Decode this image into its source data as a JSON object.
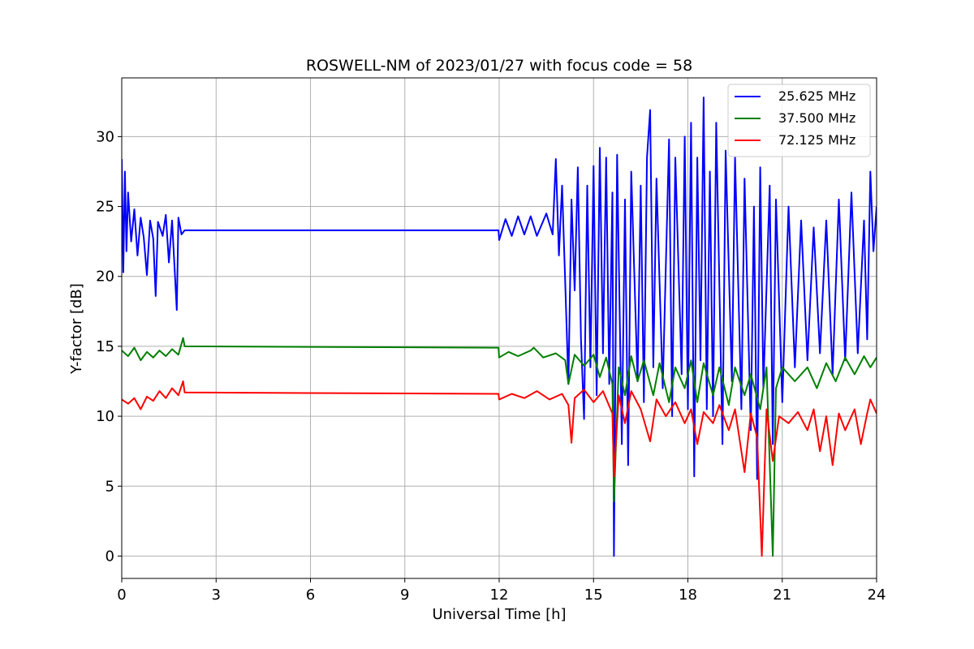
{
  "chart_data": {
    "type": "line",
    "title": "ROSWELL-NM of 2023/01/27 with focus code = 58",
    "xlabel": "Universal Time [h]",
    "ylabel": "Y-factor [dB]",
    "xlim": [
      0,
      24
    ],
    "ylim": [
      -1.6,
      34.2
    ],
    "xticks": [
      0,
      3,
      6,
      9,
      12,
      15,
      18,
      21,
      24
    ],
    "yticks": [
      0,
      5,
      10,
      15,
      20,
      25,
      30
    ],
    "grid": true,
    "legend_position": "top-right",
    "series": [
      {
        "name": "25.625 MHz",
        "color": "#0000ff",
        "points": [
          [
            0.0,
            28.4
          ],
          [
            0.05,
            20.3
          ],
          [
            0.1,
            27.5
          ],
          [
            0.15,
            21.8
          ],
          [
            0.2,
            26.0
          ],
          [
            0.3,
            22.5
          ],
          [
            0.4,
            24.8
          ],
          [
            0.5,
            21.5
          ],
          [
            0.6,
            24.2
          ],
          [
            0.7,
            22.8
          ],
          [
            0.8,
            20.1
          ],
          [
            0.9,
            24.0
          ],
          [
            1.0,
            22.7
          ],
          [
            1.08,
            18.6
          ],
          [
            1.15,
            23.9
          ],
          [
            1.3,
            22.9
          ],
          [
            1.4,
            24.4
          ],
          [
            1.5,
            21.0
          ],
          [
            1.6,
            24.0
          ],
          [
            1.75,
            17.6
          ],
          [
            1.8,
            24.2
          ],
          [
            1.9,
            23.0
          ],
          [
            2.0,
            23.3
          ],
          [
            11.98,
            23.3
          ],
          [
            12.0,
            22.6
          ],
          [
            12.2,
            24.1
          ],
          [
            12.4,
            22.9
          ],
          [
            12.6,
            24.3
          ],
          [
            12.8,
            23.0
          ],
          [
            13.0,
            24.3
          ],
          [
            13.2,
            22.9
          ],
          [
            13.5,
            24.5
          ],
          [
            13.7,
            23.0
          ],
          [
            13.8,
            28.4
          ],
          [
            13.9,
            21.5
          ],
          [
            14.0,
            26.5
          ],
          [
            14.1,
            19.5
          ],
          [
            14.2,
            12.3
          ],
          [
            14.3,
            25.5
          ],
          [
            14.4,
            19.0
          ],
          [
            14.5,
            27.8
          ],
          [
            14.6,
            15.5
          ],
          [
            14.7,
            9.8
          ],
          [
            14.8,
            26.5
          ],
          [
            14.9,
            13.5
          ],
          [
            15.0,
            27.9
          ],
          [
            15.1,
            11.5
          ],
          [
            15.2,
            29.2
          ],
          [
            15.3,
            14.5
          ],
          [
            15.4,
            28.5
          ],
          [
            15.5,
            12.3
          ],
          [
            15.6,
            26.0
          ],
          [
            15.65,
            0.0
          ],
          [
            15.75,
            28.7
          ],
          [
            15.9,
            8.0
          ],
          [
            16.0,
            25.5
          ],
          [
            16.1,
            6.5
          ],
          [
            16.2,
            27.5
          ],
          [
            16.4,
            12.5
          ],
          [
            16.5,
            26.5
          ],
          [
            16.6,
            11.0
          ],
          [
            16.7,
            28.5
          ],
          [
            16.8,
            31.9
          ],
          [
            16.9,
            13.5
          ],
          [
            17.0,
            27.0
          ],
          [
            17.2,
            12.0
          ],
          [
            17.4,
            29.8
          ],
          [
            17.5,
            10.0
          ],
          [
            17.6,
            28.5
          ],
          [
            17.8,
            13.0
          ],
          [
            17.9,
            30.0
          ],
          [
            18.0,
            10.5
          ],
          [
            18.1,
            31.0
          ],
          [
            18.2,
            5.7
          ],
          [
            18.3,
            28.5
          ],
          [
            18.4,
            14.0
          ],
          [
            18.5,
            32.8
          ],
          [
            18.6,
            10.5
          ],
          [
            18.7,
            27.5
          ],
          [
            18.8,
            10.0
          ],
          [
            18.9,
            31.0
          ],
          [
            19.1,
            8.0
          ],
          [
            19.2,
            29.0
          ],
          [
            19.4,
            12.5
          ],
          [
            19.5,
            28.5
          ],
          [
            19.7,
            10.5
          ],
          [
            19.8,
            27.0
          ],
          [
            20.0,
            9.0
          ],
          [
            20.1,
            25.0
          ],
          [
            20.2,
            5.5
          ],
          [
            20.3,
            27.8
          ],
          [
            20.4,
            12.0
          ],
          [
            20.6,
            26.5
          ],
          [
            20.7,
            8.0
          ],
          [
            20.8,
            25.5
          ],
          [
            21.0,
            11.0
          ],
          [
            21.2,
            25.0
          ],
          [
            21.4,
            13.5
          ],
          [
            21.6,
            24.0
          ],
          [
            21.8,
            14.0
          ],
          [
            22.0,
            23.5
          ],
          [
            22.2,
            14.5
          ],
          [
            22.4,
            24.0
          ],
          [
            22.6,
            13.0
          ],
          [
            22.8,
            25.5
          ],
          [
            23.0,
            14.0
          ],
          [
            23.2,
            26.0
          ],
          [
            23.4,
            14.5
          ],
          [
            23.6,
            24.0
          ],
          [
            23.7,
            15.5
          ],
          [
            23.8,
            27.5
          ],
          [
            23.9,
            21.8
          ],
          [
            24.0,
            25.0
          ]
        ]
      },
      {
        "name": "37.500 MHz",
        "color": "#008000",
        "points": [
          [
            0.0,
            14.7
          ],
          [
            0.2,
            14.3
          ],
          [
            0.4,
            14.9
          ],
          [
            0.6,
            14.0
          ],
          [
            0.8,
            14.6
          ],
          [
            1.0,
            14.2
          ],
          [
            1.2,
            14.7
          ],
          [
            1.4,
            14.3
          ],
          [
            1.6,
            14.8
          ],
          [
            1.8,
            14.4
          ],
          [
            1.95,
            15.6
          ],
          [
            2.0,
            15.0
          ],
          [
            11.98,
            14.9
          ],
          [
            12.0,
            14.2
          ],
          [
            12.3,
            14.6
          ],
          [
            12.6,
            14.3
          ],
          [
            13.0,
            14.7
          ],
          [
            13.1,
            14.9
          ],
          [
            13.4,
            14.2
          ],
          [
            13.8,
            14.5
          ],
          [
            14.1,
            14.0
          ],
          [
            14.2,
            12.3
          ],
          [
            14.4,
            14.4
          ],
          [
            14.7,
            13.6
          ],
          [
            15.0,
            14.4
          ],
          [
            15.2,
            12.8
          ],
          [
            15.4,
            14.2
          ],
          [
            15.6,
            12.3
          ],
          [
            15.65,
            3.9
          ],
          [
            15.8,
            13.5
          ],
          [
            16.0,
            11.5
          ],
          [
            16.2,
            14.3
          ],
          [
            16.4,
            12.5
          ],
          [
            16.6,
            14.0
          ],
          [
            16.9,
            11.5
          ],
          [
            17.1,
            13.8
          ],
          [
            17.4,
            11.0
          ],
          [
            17.6,
            13.5
          ],
          [
            17.9,
            12.0
          ],
          [
            18.1,
            14.0
          ],
          [
            18.3,
            11.0
          ],
          [
            18.5,
            13.8
          ],
          [
            18.8,
            11.5
          ],
          [
            19.0,
            13.5
          ],
          [
            19.3,
            10.8
          ],
          [
            19.5,
            13.5
          ],
          [
            19.8,
            11.5
          ],
          [
            20.0,
            13.0
          ],
          [
            20.3,
            10.5
          ],
          [
            20.5,
            13.5
          ],
          [
            20.7,
            0.0
          ],
          [
            20.8,
            12.0
          ],
          [
            21.0,
            13.5
          ],
          [
            21.4,
            12.5
          ],
          [
            21.8,
            13.5
          ],
          [
            22.1,
            12.0
          ],
          [
            22.4,
            13.8
          ],
          [
            22.7,
            12.5
          ],
          [
            23.0,
            14.2
          ],
          [
            23.3,
            13.0
          ],
          [
            23.6,
            14.3
          ],
          [
            23.8,
            13.5
          ],
          [
            24.0,
            14.2
          ]
        ]
      },
      {
        "name": "72.125 MHz",
        "color": "#ff0000",
        "points": [
          [
            0.0,
            11.2
          ],
          [
            0.2,
            10.9
          ],
          [
            0.4,
            11.3
          ],
          [
            0.6,
            10.5
          ],
          [
            0.8,
            11.4
          ],
          [
            1.0,
            11.1
          ],
          [
            1.2,
            11.8
          ],
          [
            1.4,
            11.3
          ],
          [
            1.6,
            12.0
          ],
          [
            1.8,
            11.5
          ],
          [
            1.95,
            12.5
          ],
          [
            2.0,
            11.7
          ],
          [
            11.98,
            11.6
          ],
          [
            12.0,
            11.2
          ],
          [
            12.4,
            11.6
          ],
          [
            12.8,
            11.3
          ],
          [
            13.2,
            11.8
          ],
          [
            13.6,
            11.2
          ],
          [
            14.0,
            11.6
          ],
          [
            14.2,
            10.8
          ],
          [
            14.3,
            8.1
          ],
          [
            14.4,
            11.3
          ],
          [
            14.7,
            11.9
          ],
          [
            15.0,
            11.0
          ],
          [
            15.3,
            11.8
          ],
          [
            15.6,
            10.2
          ],
          [
            15.65,
            5.7
          ],
          [
            15.8,
            11.5
          ],
          [
            16.0,
            9.5
          ],
          [
            16.2,
            11.8
          ],
          [
            16.5,
            10.5
          ],
          [
            16.8,
            8.2
          ],
          [
            17.0,
            11.2
          ],
          [
            17.3,
            10.0
          ],
          [
            17.6,
            11.0
          ],
          [
            17.9,
            9.5
          ],
          [
            18.1,
            10.5
          ],
          [
            18.3,
            8.0
          ],
          [
            18.5,
            10.3
          ],
          [
            18.8,
            9.5
          ],
          [
            19.0,
            10.8
          ],
          [
            19.3,
            9.0
          ],
          [
            19.5,
            10.5
          ],
          [
            19.8,
            6.0
          ],
          [
            20.0,
            10.2
          ],
          [
            20.2,
            8.5
          ],
          [
            20.35,
            0.0
          ],
          [
            20.5,
            10.5
          ],
          [
            20.7,
            6.8
          ],
          [
            20.9,
            10.0
          ],
          [
            21.2,
            9.5
          ],
          [
            21.5,
            10.3
          ],
          [
            21.8,
            9.0
          ],
          [
            22.0,
            10.5
          ],
          [
            22.2,
            7.5
          ],
          [
            22.4,
            10.0
          ],
          [
            22.6,
            6.5
          ],
          [
            22.8,
            10.2
          ],
          [
            23.0,
            9.0
          ],
          [
            23.3,
            10.5
          ],
          [
            23.5,
            8.0
          ],
          [
            23.7,
            10.2
          ],
          [
            23.8,
            11.2
          ],
          [
            24.0,
            10.2
          ]
        ]
      }
    ]
  }
}
